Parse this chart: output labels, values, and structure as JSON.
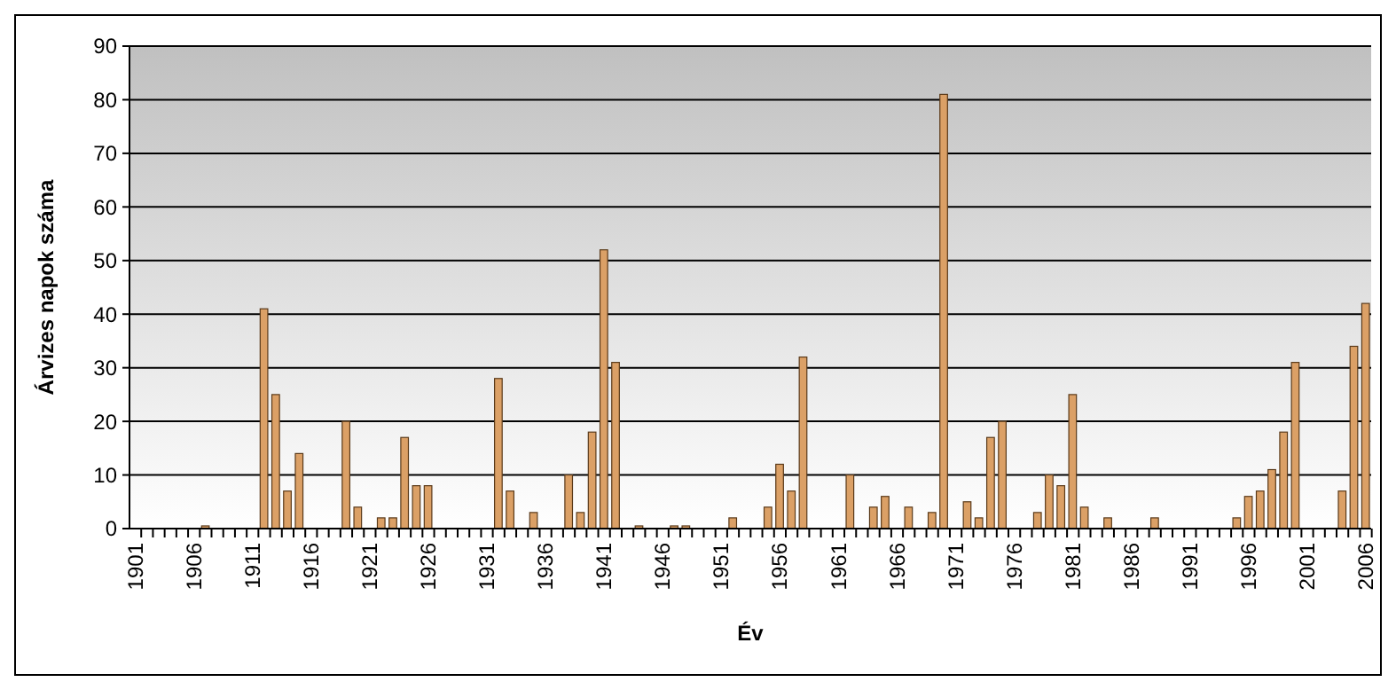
{
  "chart_data": {
    "type": "bar",
    "xlabel": "Év",
    "ylabel": "Árvizes napok száma",
    "categories": [
      "1901",
      null,
      null,
      null,
      null,
      "1906",
      null,
      null,
      null,
      null,
      "1911",
      null,
      null,
      null,
      null,
      "1916",
      null,
      null,
      null,
      null,
      "1921",
      null,
      null,
      null,
      null,
      "1926",
      null,
      null,
      null,
      null,
      "1931",
      null,
      null,
      null,
      null,
      "1936",
      null,
      null,
      null,
      null,
      "1941",
      null,
      null,
      null,
      null,
      "1946",
      null,
      null,
      null,
      null,
      "1951",
      null,
      null,
      null,
      null,
      "1956",
      null,
      null,
      null,
      null,
      "1961",
      null,
      null,
      null,
      null,
      "1966",
      null,
      null,
      null,
      null,
      "1971",
      null,
      null,
      null,
      null,
      "1976",
      null,
      null,
      null,
      null,
      "1981",
      null,
      null,
      null,
      null,
      "1986",
      null,
      null,
      null,
      null,
      "1991",
      null,
      null,
      null,
      null,
      "1996",
      null,
      null,
      null,
      null,
      "2001",
      null,
      null,
      null,
      null,
      "2006"
    ],
    "values": [
      0,
      0,
      0,
      0,
      0,
      0,
      0.5,
      0,
      0,
      0,
      0,
      41,
      25,
      7,
      14,
      0,
      0,
      0,
      20,
      4,
      0,
      2,
      2,
      17,
      8,
      8,
      0,
      0,
      0,
      0,
      0,
      28,
      7,
      0,
      3,
      0,
      0,
      10,
      3,
      18,
      52,
      31,
      0,
      0.5,
      0,
      0,
      0.5,
      0.5,
      0,
      0,
      0,
      2,
      0,
      0,
      4,
      12,
      7,
      32,
      0,
      0,
      0,
      10,
      0,
      4,
      6,
      0,
      4,
      0,
      3,
      81,
      0,
      5,
      2,
      17,
      20,
      0,
      0,
      3,
      10,
      8,
      25,
      4,
      0,
      2,
      0,
      0,
      0,
      2,
      0,
      0,
      0,
      0,
      0,
      0,
      2,
      6,
      7,
      11,
      18,
      31,
      0,
      0,
      0,
      7,
      34,
      42
    ],
    "color": "#dba066",
    "ylim": [
      0,
      90
    ],
    "yticks": [
      0,
      10,
      20,
      30,
      40,
      50,
      60,
      70,
      80,
      90
    ],
    "grid": "y"
  }
}
